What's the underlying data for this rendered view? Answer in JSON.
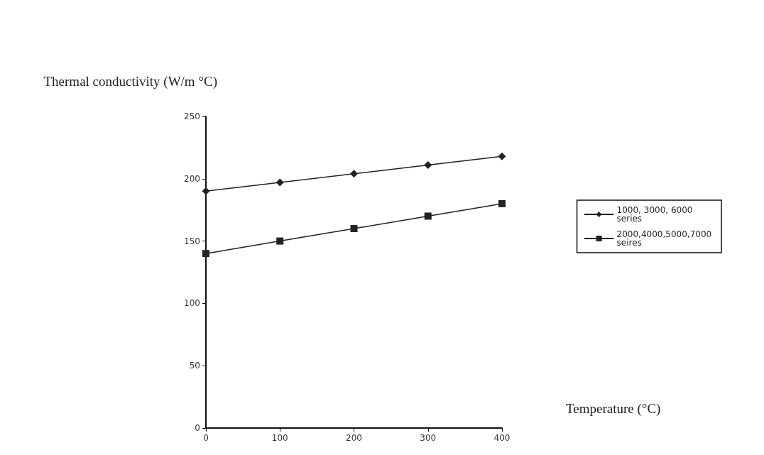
{
  "chart_data": {
    "type": "line",
    "ylabel": "Thermal conductivity (W/m °C)",
    "xlabel": "Temperature (°C)",
    "x": [
      0,
      100,
      200,
      300,
      400
    ],
    "series": [
      {
        "name": "1000, 3000, 6000 series",
        "color": "#222222",
        "marker": "diamond",
        "values": [
          190,
          197,
          204,
          211,
          218
        ]
      },
      {
        "name": "2000,4000,5000,7000 seires",
        "color": "#222222",
        "marker": "square",
        "values": [
          140,
          150,
          160,
          170,
          180
        ]
      }
    ],
    "xlim": [
      0,
      400
    ],
    "xticks": [
      0,
      100,
      200,
      300,
      400
    ],
    "ylim": [
      0,
      250
    ],
    "yticks": [
      0,
      50,
      100,
      150,
      200,
      250
    ],
    "grid": false,
    "legend": "right",
    "line_style": "solid"
  }
}
